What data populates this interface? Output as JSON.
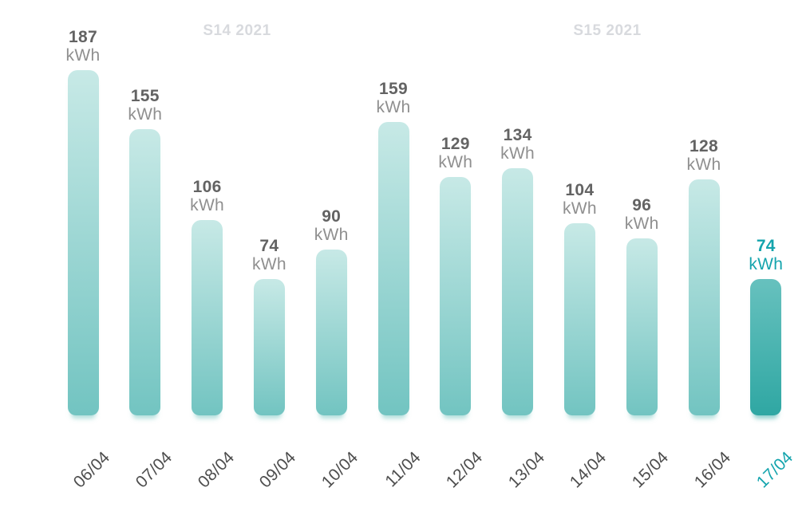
{
  "chart_data": {
    "type": "bar",
    "title": "",
    "unit": "kWh",
    "categories": [
      "06/04",
      "07/04",
      "08/04",
      "09/04",
      "10/04",
      "11/04",
      "12/04",
      "13/04",
      "14/04",
      "15/04",
      "16/04",
      "17/04"
    ],
    "values": [
      187,
      155,
      106,
      74,
      90,
      159,
      129,
      134,
      104,
      96,
      128,
      74
    ],
    "value_labels": [
      "187 kWh",
      "155 kWh",
      "106 kWh",
      "74 kWh",
      "90 kWh",
      "159 kWh",
      "129 kWh",
      "134 kWh",
      "104 kWh",
      "96 kWh",
      "128 kWh",
      "74 kWh"
    ],
    "week_labels": [
      {
        "label": "S14 2021"
      },
      {
        "label": "S15 2021"
      }
    ],
    "highlighted_index": 11,
    "highlighted_category": "17/04",
    "xlabel": "",
    "ylabel": "",
    "ylim": [
      0,
      200
    ],
    "grid": false,
    "legend": false,
    "x_tick_rotation_deg": -45
  },
  "colors": {
    "background": "#ffffff",
    "bar_gradient_top": "#c7e9e6",
    "bar_gradient_bottom": "#72c4c1",
    "highlight_gradient_top": "#67c1be",
    "highlight_gradient_bottom": "#2fa7a3",
    "value_text": "#636363",
    "unit_text": "#8f8f8f",
    "date_text": "#4d4d4d",
    "accent_text": "#14a4ad",
    "week_label_text": "#d8dade"
  }
}
